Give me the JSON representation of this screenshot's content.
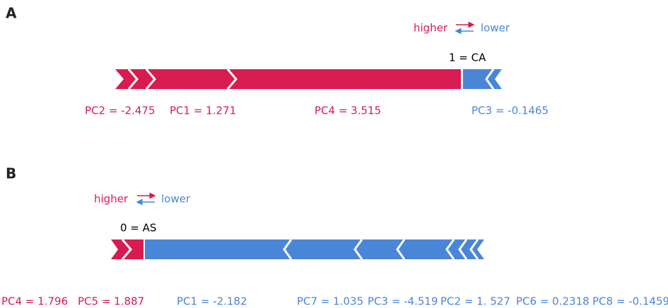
{
  "panels": [
    {
      "label": "A",
      "legend": {
        "higher": "higher",
        "lower": "lower"
      },
      "output": "1 = CA",
      "features": [
        "PC2 = -2.475",
        "PC1 = 1.271",
        "PC4 = 3.515",
        "PC3 = -0.1465"
      ]
    },
    {
      "label": "B",
      "legend": {
        "higher": "higher",
        "lower": "lower"
      },
      "output": "0 = AS",
      "features": [
        "PC4 = 1.796",
        "PC5 = 1.887",
        "PC1 = -2.182",
        "PC7 = 1.035",
        "PC3 = -4.519",
        "PC2 = 1. 527",
        "PC6 = 0.2318",
        "PC8 = -0.1459"
      ]
    }
  ]
}
